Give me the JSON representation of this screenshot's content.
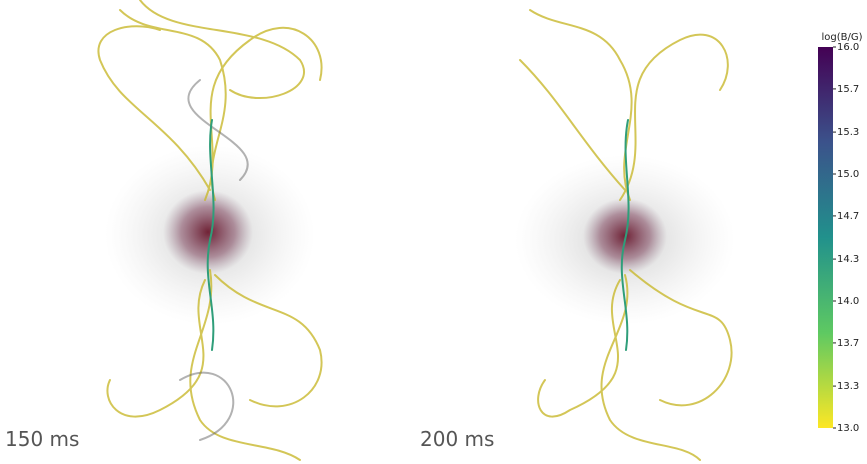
{
  "panels": [
    {
      "label": "150 ms"
    },
    {
      "label": "200 ms"
    }
  ],
  "colorbar": {
    "title": "log(B/G)",
    "lim": [
      13.0,
      16.0
    ],
    "colors": [
      "#fde725",
      "#5ec962",
      "#21918c",
      "#3b528b",
      "#440154"
    ],
    "ticks": [
      {
        "value": 13.0,
        "label": "13.0"
      },
      {
        "value": 13.33,
        "label": "13.3"
      },
      {
        "value": 13.67,
        "label": "13.7"
      },
      {
        "value": 14.0,
        "label": "14.0"
      },
      {
        "value": 14.33,
        "label": "14.3"
      },
      {
        "value": 14.67,
        "label": "14.7"
      },
      {
        "value": 15.0,
        "label": "15.0"
      },
      {
        "value": 15.33,
        "label": "15.3"
      },
      {
        "value": 15.67,
        "label": "15.7"
      },
      {
        "value": 16.0,
        "label": "16.0"
      }
    ]
  }
}
